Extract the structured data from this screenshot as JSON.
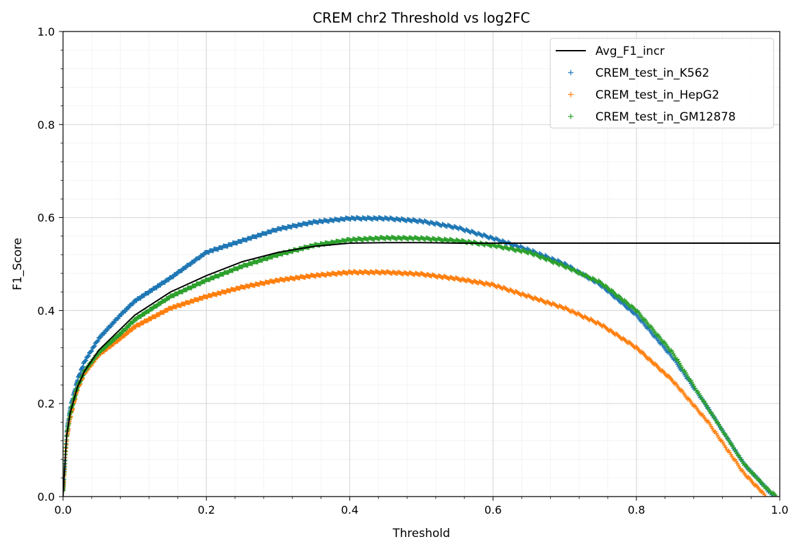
{
  "chart_data": {
    "type": "scatter",
    "title": "CREM chr2 Threshold vs log2FC",
    "xlabel": "Threshold",
    "ylabel": "F1_Score",
    "xlim": [
      0.0,
      1.0
    ],
    "ylim": [
      0.0,
      1.0
    ],
    "xticks": [
      "0.0",
      "0.2",
      "0.4",
      "0.6",
      "0.8",
      "1.0"
    ],
    "yticks": [
      "0.0",
      "0.2",
      "0.4",
      "0.6",
      "0.8",
      "1.0"
    ],
    "grid": true,
    "minor_grid": true,
    "legend_position": "top-right",
    "series": [
      {
        "name": "Avg_F1_incr",
        "kind": "line",
        "color": "#000000",
        "points": [
          [
            0.0,
            0.0
          ],
          [
            0.005,
            0.13
          ],
          [
            0.01,
            0.18
          ],
          [
            0.02,
            0.235
          ],
          [
            0.03,
            0.27
          ],
          [
            0.05,
            0.315
          ],
          [
            0.08,
            0.36
          ],
          [
            0.1,
            0.39
          ],
          [
            0.15,
            0.44
          ],
          [
            0.2,
            0.475
          ],
          [
            0.25,
            0.505
          ],
          [
            0.3,
            0.525
          ],
          [
            0.35,
            0.538
          ],
          [
            0.4,
            0.545
          ],
          [
            0.45,
            0.546
          ],
          [
            0.5,
            0.546
          ],
          [
            0.55,
            0.545
          ],
          [
            0.6,
            0.545
          ],
          [
            0.7,
            0.545
          ],
          [
            0.8,
            0.545
          ],
          [
            0.9,
            0.545
          ],
          [
            1.0,
            0.545
          ]
        ]
      },
      {
        "name": "CREM_test_in_K562",
        "kind": "markers",
        "color": "#1f77b4",
        "points": [
          [
            0.0,
            0.01
          ],
          [
            0.005,
            0.14
          ],
          [
            0.01,
            0.19
          ],
          [
            0.02,
            0.25
          ],
          [
            0.03,
            0.29
          ],
          [
            0.05,
            0.34
          ],
          [
            0.08,
            0.39
          ],
          [
            0.1,
            0.42
          ],
          [
            0.15,
            0.47
          ],
          [
            0.2,
            0.525
          ],
          [
            0.25,
            0.55
          ],
          [
            0.3,
            0.575
          ],
          [
            0.35,
            0.59
          ],
          [
            0.4,
            0.598
          ],
          [
            0.45,
            0.598
          ],
          [
            0.5,
            0.592
          ],
          [
            0.55,
            0.578
          ],
          [
            0.6,
            0.555
          ],
          [
            0.65,
            0.53
          ],
          [
            0.7,
            0.5
          ],
          [
            0.75,
            0.455
          ],
          [
            0.8,
            0.39
          ],
          [
            0.85,
            0.3
          ],
          [
            0.9,
            0.19
          ],
          [
            0.95,
            0.07
          ],
          [
            0.98,
            0.02
          ],
          [
            0.99,
            0.0
          ]
        ]
      },
      {
        "name": "CREM_test_in_HepG2",
        "kind": "markers",
        "color": "#ff7f0e",
        "points": [
          [
            0.0,
            0.01
          ],
          [
            0.005,
            0.12
          ],
          [
            0.01,
            0.17
          ],
          [
            0.02,
            0.23
          ],
          [
            0.03,
            0.265
          ],
          [
            0.05,
            0.305
          ],
          [
            0.08,
            0.34
          ],
          [
            0.1,
            0.365
          ],
          [
            0.15,
            0.405
          ],
          [
            0.2,
            0.43
          ],
          [
            0.25,
            0.45
          ],
          [
            0.3,
            0.465
          ],
          [
            0.35,
            0.475
          ],
          [
            0.4,
            0.482
          ],
          [
            0.45,
            0.482
          ],
          [
            0.5,
            0.478
          ],
          [
            0.55,
            0.468
          ],
          [
            0.6,
            0.455
          ],
          [
            0.65,
            0.43
          ],
          [
            0.7,
            0.405
          ],
          [
            0.75,
            0.37
          ],
          [
            0.8,
            0.32
          ],
          [
            0.85,
            0.25
          ],
          [
            0.9,
            0.16
          ],
          [
            0.95,
            0.05
          ],
          [
            0.975,
            0.01
          ],
          [
            0.98,
            0.0
          ]
        ]
      },
      {
        "name": "CREM_test_in_GM12878",
        "kind": "markers",
        "color": "#2ca02c",
        "points": [
          [
            0.0,
            0.01
          ],
          [
            0.005,
            0.13
          ],
          [
            0.01,
            0.18
          ],
          [
            0.02,
            0.235
          ],
          [
            0.03,
            0.27
          ],
          [
            0.05,
            0.31
          ],
          [
            0.08,
            0.35
          ],
          [
            0.1,
            0.38
          ],
          [
            0.15,
            0.43
          ],
          [
            0.2,
            0.465
          ],
          [
            0.25,
            0.495
          ],
          [
            0.3,
            0.52
          ],
          [
            0.35,
            0.54
          ],
          [
            0.4,
            0.552
          ],
          [
            0.45,
            0.556
          ],
          [
            0.5,
            0.555
          ],
          [
            0.55,
            0.55
          ],
          [
            0.6,
            0.54
          ],
          [
            0.65,
            0.525
          ],
          [
            0.7,
            0.495
          ],
          [
            0.75,
            0.46
          ],
          [
            0.8,
            0.4
          ],
          [
            0.85,
            0.31
          ],
          [
            0.9,
            0.19
          ],
          [
            0.95,
            0.07
          ],
          [
            0.98,
            0.02
          ],
          [
            0.995,
            0.0
          ]
        ]
      }
    ]
  }
}
